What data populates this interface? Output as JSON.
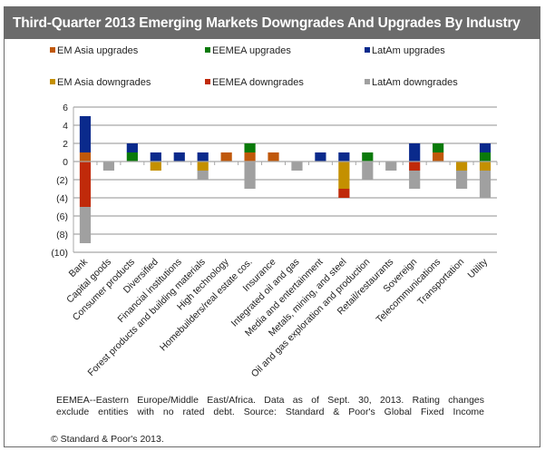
{
  "header": {
    "title": "Third-Quarter 2013 Emerging Markets Downgrades And Upgrades By Industry"
  },
  "legend": [
    {
      "label": "EM Asia upgrades",
      "color": "#c0580a"
    },
    {
      "label": "EEMEA upgrades",
      "color": "#0a7a0a"
    },
    {
      "label": "LatAm upgrades",
      "color": "#0a2a8c"
    },
    {
      "label": "EM Asia downgrades",
      "color": "#c49000"
    },
    {
      "label": "EEMEA downgrades",
      "color": "#c02a0a"
    },
    {
      "label": "LatAm downgrades",
      "color": "#a0a0a0"
    }
  ],
  "footnote": {
    "line1": "EEMEA--Eastern Europe/Middle East/Africa. Data as of Sept. 30, 2013. Rating changes",
    "line2": "exclude entities with no rated debt. Source: Standard & Poor's Global Fixed Income",
    "copyright": "© Standard & Poor's 2013."
  },
  "chart_data": {
    "type": "bar",
    "stacked": true,
    "title": "Third-Quarter 2013 Emerging Markets Downgrades And Upgrades By Industry",
    "xlabel": "",
    "ylabel": "",
    "ylim": [
      -10,
      6
    ],
    "yticks": [
      6,
      4,
      2,
      0,
      -2,
      -4,
      -6,
      -8,
      -10
    ],
    "ytick_labels": [
      "6",
      "4",
      "2",
      "0",
      "(2)",
      "(4)",
      "(6)",
      "(8)",
      "(10)"
    ],
    "grid": true,
    "legend_position": "top",
    "categories": [
      "Bank",
      "Capital goods",
      "Consumer products",
      "Diversified",
      "Financial institutions",
      "Forest products and building materials",
      "High technology",
      "Homebuilders/real estate cos.",
      "Insurance",
      "Integrated oil and gas",
      "Media and entertainment",
      "Metals, mining, and steel",
      "Oil and gas exploration and production",
      "Retail/restaurants",
      "Sovereign",
      "Telecommunications",
      "Transportation",
      "Utility"
    ],
    "series": [
      {
        "name": "EM Asia upgrades",
        "values": [
          1,
          0,
          0,
          0,
          0,
          0,
          1,
          1,
          1,
          0,
          0,
          0,
          0,
          0,
          0,
          1,
          0,
          0
        ]
      },
      {
        "name": "EEMEA upgrades",
        "values": [
          0,
          0,
          1,
          0,
          0,
          0,
          0,
          1,
          0,
          0,
          0,
          0,
          1,
          0,
          0,
          1,
          0,
          1
        ]
      },
      {
        "name": "LatAm upgrades",
        "values": [
          4,
          0,
          1,
          1,
          1,
          1,
          0,
          0,
          0,
          0,
          1,
          1,
          0,
          0,
          2,
          0,
          0,
          1
        ]
      },
      {
        "name": "EM Asia downgrades",
        "values": [
          0,
          0,
          0,
          -1,
          0,
          -1,
          0,
          0,
          0,
          0,
          0,
          -3,
          0,
          0,
          0,
          0,
          -1,
          -1
        ]
      },
      {
        "name": "EEMEA downgrades",
        "values": [
          -5,
          0,
          0,
          0,
          0,
          0,
          0,
          0,
          0,
          0,
          0,
          -1,
          0,
          0,
          -1,
          0,
          0,
          0
        ]
      },
      {
        "name": "LatAm downgrades",
        "values": [
          -4,
          -1,
          0,
          0,
          0,
          -1,
          0,
          -3,
          0,
          -1,
          0,
          0,
          -2,
          -1,
          -2,
          0,
          -2,
          -3
        ]
      }
    ]
  }
}
